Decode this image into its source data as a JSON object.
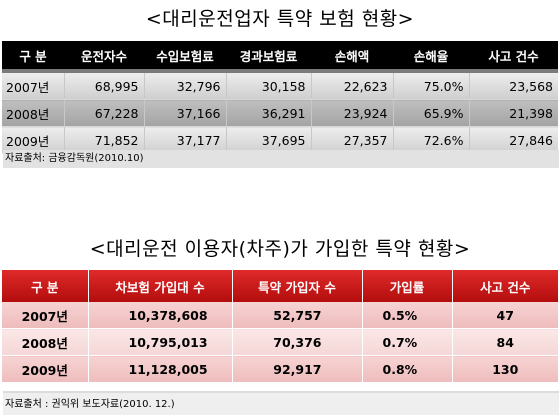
{
  "table1": {
    "title": "<대리운전업자 특약 보험 현황>",
    "headers": [
      "구 분",
      "운전자수",
      "수입보험료",
      "경과보험료",
      "손해액",
      "손해율",
      "사고 건수"
    ],
    "rows": [
      [
        "2007년",
        "68,995",
        "32,796",
        "30,158",
        "22,623",
        "75.0%",
        "23,568"
      ],
      [
        "2008년",
        "67,228",
        "37,166",
        "36,291",
        "23,924",
        "65.9%",
        "21,398"
      ],
      [
        "2009년",
        "71,852",
        "37,177",
        "37,695",
        "27,357",
        "72.6%",
        "27,846"
      ]
    ],
    "source": "자료출처: 금융감독원(2010.10)"
  },
  "table2": {
    "title": "<대리운전 이용자(차주)가 가입한 특약 현황>",
    "headers": [
      "구 분",
      "차보험 가입대 수",
      "특약 가입자 수",
      "가입률",
      "사고 건수"
    ],
    "rows": [
      [
        "2007년",
        "10,378,608",
        "52,757",
        "0.5%",
        "47"
      ],
      [
        "2008년",
        "10,795,013",
        "70,376",
        "0.7%",
        "84"
      ],
      [
        "2009년",
        "11,128,005",
        "92,917",
        "0.8%",
        "130"
      ]
    ],
    "source": "자료출처 : 권익위 보도자료(2010. 12.)"
  }
}
